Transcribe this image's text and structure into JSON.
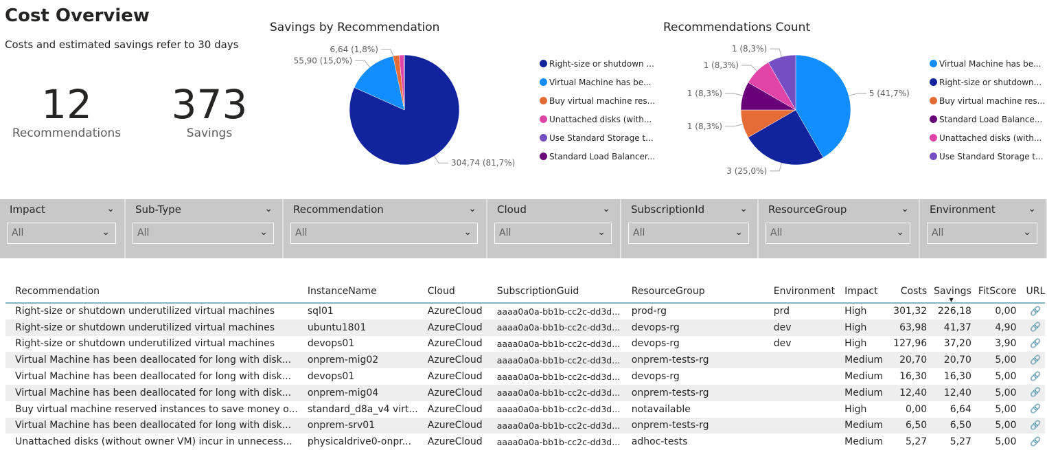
{
  "header": {
    "title": "Cost Overview",
    "subtitle": "Costs and estimated savings refer to 30 days"
  },
  "kpis": [
    {
      "value": "12",
      "label": "Recommendations"
    },
    {
      "value": "373",
      "label": "Savings"
    }
  ],
  "chart_data": [
    {
      "type": "pie",
      "title": "Savings by Recommendation",
      "legend_position": "right",
      "slices": [
        {
          "name": "Right-size or shutdown ...",
          "value": 304.74,
          "label": "304,74 (81,7%)",
          "color": "#12239e"
        },
        {
          "name": "Virtual Machine has be...",
          "value": 55.9,
          "label": "55,90 (15,0%)",
          "color": "#118dff"
        },
        {
          "name": "Buy virtual machine res...",
          "value": 6.64,
          "label": "6,64 (1,8%)",
          "color": "#e66c37"
        },
        {
          "name": "Unattached disks (with...",
          "value": 5.27,
          "label": "",
          "color": "#e044a7"
        },
        {
          "name": "Use Standard Storage t...",
          "value": 0.3,
          "label": "",
          "color": "#744ec2"
        },
        {
          "name": "Standard Load Balancer...",
          "value": 0.15,
          "label": "",
          "color": "#6b007b"
        }
      ]
    },
    {
      "type": "pie",
      "title": "Recommendations Count",
      "legend_position": "right",
      "slices": [
        {
          "name": "Virtual Machine has be...",
          "value": 5,
          "label": "5 (41,7%)",
          "color": "#118dff"
        },
        {
          "name": "Right-size or shutdown...",
          "value": 3,
          "label": "3 (25,0%)",
          "color": "#12239e"
        },
        {
          "name": "Buy virtual machine res...",
          "value": 1,
          "label": "1 (8,3%)",
          "color": "#e66c37"
        },
        {
          "name": "Standard Load Balance...",
          "value": 1,
          "label": "1 (8,3%)",
          "color": "#6b007b"
        },
        {
          "name": "Unattached disks (with...",
          "value": 1,
          "label": "1 (8,3%)",
          "color": "#e044a7"
        },
        {
          "name": "Use Standard Storage t...",
          "value": 1,
          "label": "1 (8,3%)",
          "color": "#744ec2"
        }
      ]
    }
  ],
  "filters": [
    {
      "label": "Impact",
      "value": "All"
    },
    {
      "label": "Sub-Type",
      "value": "All"
    },
    {
      "label": "Recommendation",
      "value": "All"
    },
    {
      "label": "Cloud",
      "value": "All"
    },
    {
      "label": "SubscriptionId",
      "value": "All"
    },
    {
      "label": "ResourceGroup",
      "value": "All"
    },
    {
      "label": "Environment",
      "value": "All"
    }
  ],
  "table": {
    "columns": [
      "Recommendation",
      "InstanceName",
      "Cloud",
      "SubscriptionGuid",
      "ResourceGroup",
      "Environment",
      "Impact",
      "Costs",
      "Savings",
      "FitScore",
      "URL"
    ],
    "sorted_column": "Savings",
    "sort_direction": "descending",
    "url_icon": "link-icon",
    "rows": [
      [
        "Right-size or shutdown underutilized virtual machines",
        "sql01",
        "AzureCloud",
        "aaaa0a0a-bb1b-cc2c-dd3d...",
        "prod-rg",
        "prd",
        "High",
        "301,32",
        "226,18",
        "0,00"
      ],
      [
        "Right-size or shutdown underutilized virtual machines",
        "ubuntu1801",
        "AzureCloud",
        "aaaa0a0a-bb1b-cc2c-dd3d...",
        "devops-rg",
        "dev",
        "High",
        "63,98",
        "41,37",
        "4,90"
      ],
      [
        "Right-size or shutdown underutilized virtual machines",
        "devops01",
        "AzureCloud",
        "aaaa0a0a-bb1b-cc2c-dd3d...",
        "devops-rg",
        "dev",
        "High",
        "127,96",
        "37,20",
        "3,90"
      ],
      [
        "Virtual Machine has been deallocated for long with disk...",
        "onprem-mig02",
        "AzureCloud",
        "aaaa0a0a-bb1b-cc2c-dd3d...",
        "onprem-tests-rg",
        "",
        "Medium",
        "20,70",
        "20,70",
        "5,00"
      ],
      [
        "Virtual Machine has been deallocated for long with disk...",
        "devops01",
        "AzureCloud",
        "aaaa0a0a-bb1b-cc2c-dd3d...",
        "devops-rg",
        "",
        "Medium",
        "16,30",
        "16,30",
        "5,00"
      ],
      [
        "Virtual Machine has been deallocated for long with disk...",
        "onprem-mig04",
        "AzureCloud",
        "aaaa0a0a-bb1b-cc2c-dd3d...",
        "onprem-tests-rg",
        "",
        "Medium",
        "12,40",
        "12,40",
        "5,00"
      ],
      [
        "Buy virtual machine reserved instances to save money o...",
        "standard_d8a_v4 virt...",
        "AzureCloud",
        "aaaa0a0a-bb1b-cc2c-dd3d...",
        "notavailable",
        "",
        "High",
        "0,00",
        "6,64",
        "5,00"
      ],
      [
        "Virtual Machine has been deallocated for long with disk...",
        "onprem-srv01",
        "AzureCloud",
        "aaaa0a0a-bb1b-cc2c-dd3d...",
        "onprem-tests-rg",
        "",
        "Medium",
        "6,50",
        "6,50",
        "5,00"
      ],
      [
        "Unattached disks (without owner VM) incur in unnecess...",
        "physicaldrive0-onpr...",
        "AzureCloud",
        "aaaa0a0a-bb1b-cc2c-dd3d...",
        "adhoc-tests",
        "",
        "Medium",
        "5,27",
        "5,27",
        "5,00"
      ]
    ]
  }
}
